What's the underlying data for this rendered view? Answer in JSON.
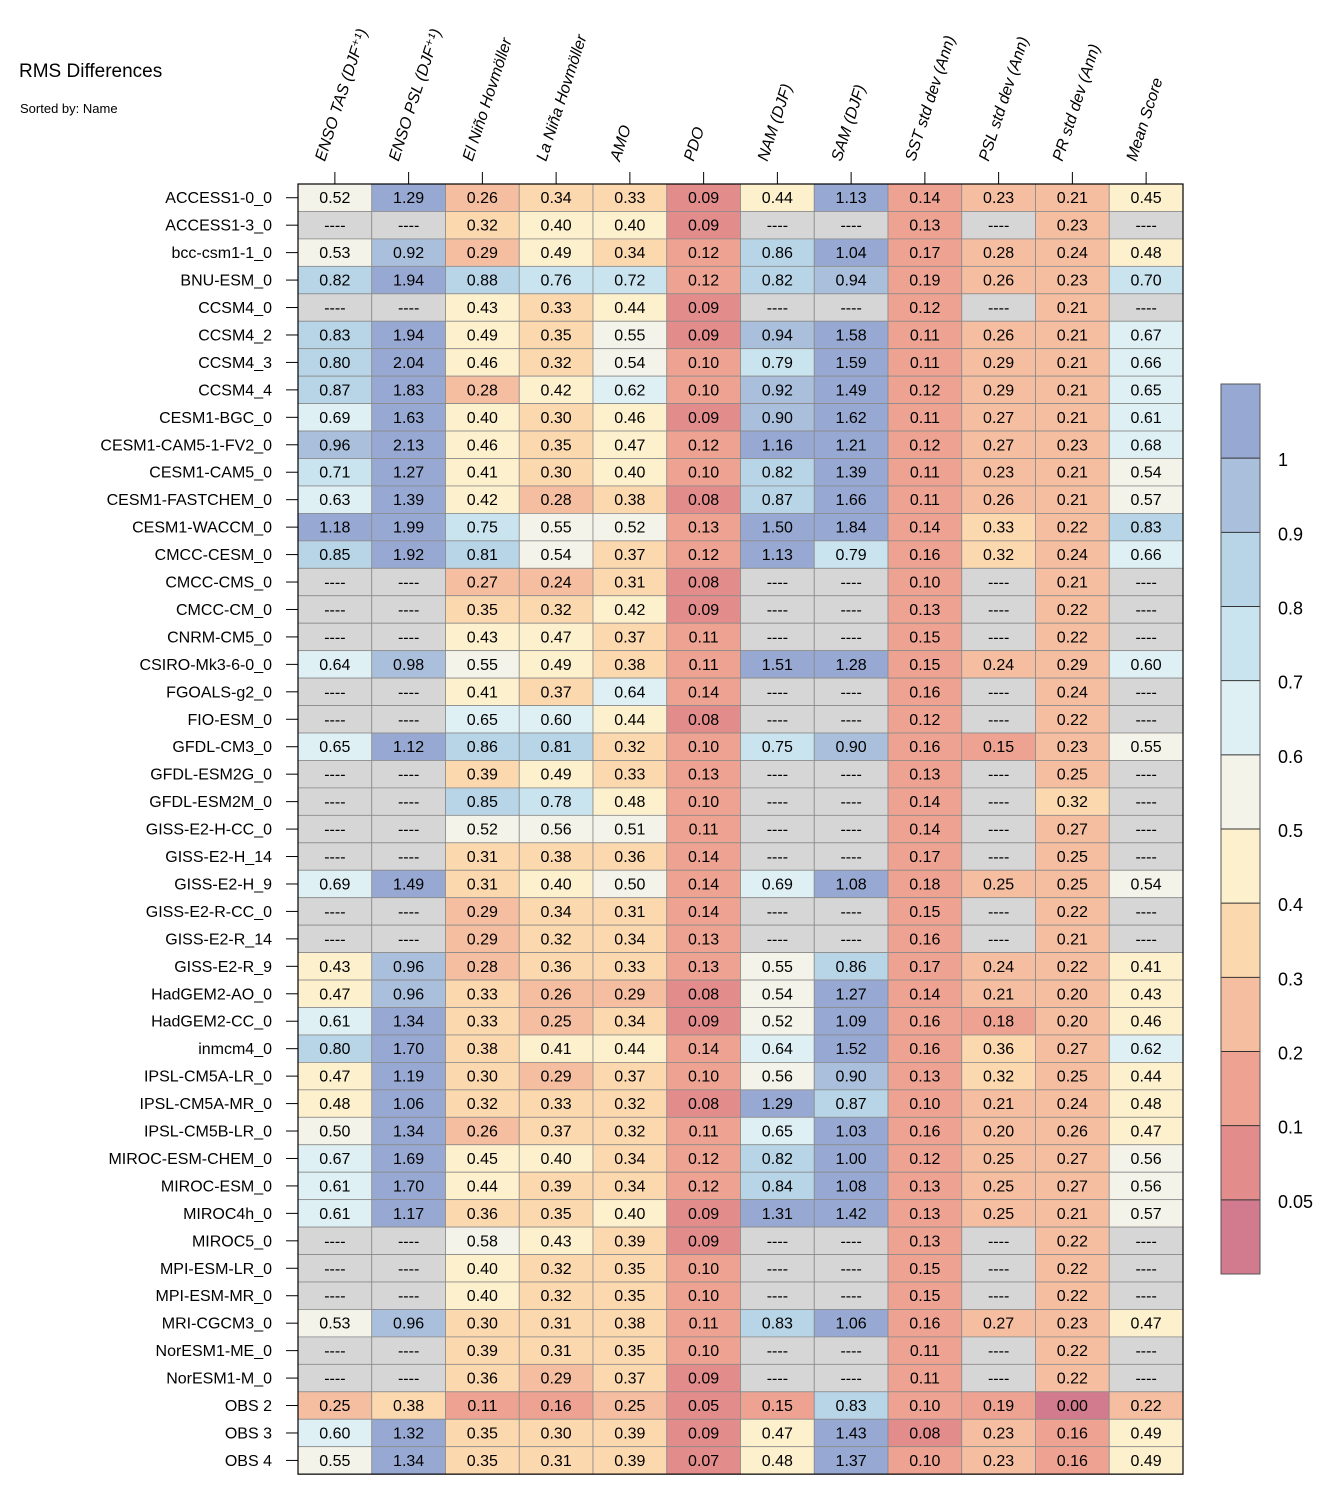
{
  "chart_data": {
    "type": "heatmap",
    "title": "RMS Differences",
    "subtitle": "Sorted by: Name",
    "missing_text": "----",
    "columns": [
      "ENSO TAS (DJF⁺¹)",
      "ENSO PSL (DJF⁺¹)",
      "El Niño Hovmöller",
      "La Niña Hovmöller",
      "AMO",
      "PDO",
      "NAM (DJF)",
      "SAM (DJF)",
      "SST std dev (Ann)",
      "PSL std dev (Ann)",
      "PR std dev (Ann)",
      "Mean Score"
    ],
    "rows": [
      "ACCESS1-0_0",
      "ACCESS1-3_0",
      "bcc-csm1-1_0",
      "BNU-ESM_0",
      "CCSM4_0",
      "CCSM4_2",
      "CCSM4_3",
      "CCSM4_4",
      "CESM1-BGC_0",
      "CESM1-CAM5-1-FV2_0",
      "CESM1-CAM5_0",
      "CESM1-FASTCHEM_0",
      "CESM1-WACCM_0",
      "CMCC-CESM_0",
      "CMCC-CMS_0",
      "CMCC-CM_0",
      "CNRM-CM5_0",
      "CSIRO-Mk3-6-0_0",
      "FGOALS-g2_0",
      "FIO-ESM_0",
      "GFDL-CM3_0",
      "GFDL-ESM2G_0",
      "GFDL-ESM2M_0",
      "GISS-E2-H-CC_0",
      "GISS-E2-H_14",
      "GISS-E2-H_9",
      "GISS-E2-R-CC_0",
      "GISS-E2-R_14",
      "GISS-E2-R_9",
      "HadGEM2-AO_0",
      "HadGEM2-CC_0",
      "inmcm4_0",
      "IPSL-CM5A-LR_0",
      "IPSL-CM5A-MR_0",
      "IPSL-CM5B-LR_0",
      "MIROC-ESM-CHEM_0",
      "MIROC-ESM_0",
      "MIROC4h_0",
      "MIROC5_0",
      "MPI-ESM-LR_0",
      "MPI-ESM-MR_0",
      "MRI-CGCM3_0",
      "NorESM1-ME_0",
      "NorESM1-M_0",
      "OBS 2",
      "OBS 3",
      "OBS 4"
    ],
    "values": [
      [
        0.52,
        1.29,
        0.26,
        0.34,
        0.33,
        0.09,
        0.44,
        1.13,
        0.14,
        0.23,
        0.21,
        0.45
      ],
      [
        null,
        null,
        0.32,
        0.4,
        0.4,
        0.09,
        null,
        null,
        0.13,
        null,
        0.23,
        null
      ],
      [
        0.53,
        0.92,
        0.29,
        0.49,
        0.34,
        0.12,
        0.86,
        1.04,
        0.17,
        0.28,
        0.24,
        0.48
      ],
      [
        0.82,
        1.94,
        0.88,
        0.76,
        0.72,
        0.12,
        0.82,
        0.94,
        0.19,
        0.26,
        0.23,
        0.7
      ],
      [
        null,
        null,
        0.43,
        0.33,
        0.44,
        0.09,
        null,
        null,
        0.12,
        null,
        0.21,
        null
      ],
      [
        0.83,
        1.94,
        0.49,
        0.35,
        0.55,
        0.09,
        0.94,
        1.58,
        0.11,
        0.26,
        0.21,
        0.67
      ],
      [
        0.8,
        2.04,
        0.46,
        0.32,
        0.54,
        0.1,
        0.79,
        1.59,
        0.11,
        0.29,
        0.21,
        0.66
      ],
      [
        0.87,
        1.83,
        0.28,
        0.42,
        0.62,
        0.1,
        0.92,
        1.49,
        0.12,
        0.29,
        0.21,
        0.65
      ],
      [
        0.69,
        1.63,
        0.4,
        0.3,
        0.46,
        0.09,
        0.9,
        1.62,
        0.11,
        0.27,
        0.21,
        0.61
      ],
      [
        0.96,
        2.13,
        0.46,
        0.35,
        0.47,
        0.12,
        1.16,
        1.21,
        0.12,
        0.27,
        0.23,
        0.68
      ],
      [
        0.71,
        1.27,
        0.41,
        0.3,
        0.4,
        0.1,
        0.82,
        1.39,
        0.11,
        0.23,
        0.21,
        0.54
      ],
      [
        0.63,
        1.39,
        0.42,
        0.28,
        0.38,
        0.08,
        0.87,
        1.66,
        0.11,
        0.26,
        0.21,
        0.57
      ],
      [
        1.18,
        1.99,
        0.75,
        0.55,
        0.52,
        0.13,
        1.5,
        1.84,
        0.14,
        0.33,
        0.22,
        0.83
      ],
      [
        0.85,
        1.92,
        0.81,
        0.54,
        0.37,
        0.12,
        1.13,
        0.79,
        0.16,
        0.32,
        0.24,
        0.66
      ],
      [
        null,
        null,
        0.27,
        0.24,
        0.31,
        0.08,
        null,
        null,
        0.1,
        null,
        0.21,
        null
      ],
      [
        null,
        null,
        0.35,
        0.32,
        0.42,
        0.09,
        null,
        null,
        0.13,
        null,
        0.22,
        null
      ],
      [
        null,
        null,
        0.43,
        0.47,
        0.37,
        0.11,
        null,
        null,
        0.15,
        null,
        0.22,
        null
      ],
      [
        0.64,
        0.98,
        0.55,
        0.49,
        0.38,
        0.11,
        1.51,
        1.28,
        0.15,
        0.24,
        0.29,
        0.6
      ],
      [
        null,
        null,
        0.41,
        0.37,
        0.64,
        0.14,
        null,
        null,
        0.16,
        null,
        0.24,
        null
      ],
      [
        null,
        null,
        0.65,
        0.6,
        0.44,
        0.08,
        null,
        null,
        0.12,
        null,
        0.22,
        null
      ],
      [
        0.65,
        1.12,
        0.86,
        0.81,
        0.32,
        0.1,
        0.75,
        0.9,
        0.16,
        0.15,
        0.23,
        0.55
      ],
      [
        null,
        null,
        0.39,
        0.49,
        0.33,
        0.13,
        null,
        null,
        0.13,
        null,
        0.25,
        null
      ],
      [
        null,
        null,
        0.85,
        0.78,
        0.48,
        0.1,
        null,
        null,
        0.14,
        null,
        0.32,
        null
      ],
      [
        null,
        null,
        0.52,
        0.56,
        0.51,
        0.11,
        null,
        null,
        0.14,
        null,
        0.27,
        null
      ],
      [
        null,
        null,
        0.31,
        0.38,
        0.36,
        0.14,
        null,
        null,
        0.17,
        null,
        0.25,
        null
      ],
      [
        0.69,
        1.49,
        0.31,
        0.4,
        0.5,
        0.14,
        0.69,
        1.08,
        0.18,
        0.25,
        0.25,
        0.54
      ],
      [
        null,
        null,
        0.29,
        0.34,
        0.31,
        0.14,
        null,
        null,
        0.15,
        null,
        0.22,
        null
      ],
      [
        null,
        null,
        0.29,
        0.32,
        0.34,
        0.13,
        null,
        null,
        0.16,
        null,
        0.21,
        null
      ],
      [
        0.43,
        0.96,
        0.28,
        0.36,
        0.33,
        0.13,
        0.55,
        0.86,
        0.17,
        0.24,
        0.22,
        0.41
      ],
      [
        0.47,
        0.96,
        0.33,
        0.26,
        0.29,
        0.08,
        0.54,
        1.27,
        0.14,
        0.21,
        0.2,
        0.43
      ],
      [
        0.61,
        1.34,
        0.33,
        0.25,
        0.34,
        0.09,
        0.52,
        1.09,
        0.16,
        0.18,
        0.2,
        0.46
      ],
      [
        0.8,
        1.7,
        0.38,
        0.41,
        0.44,
        0.14,
        0.64,
        1.52,
        0.16,
        0.36,
        0.27,
        0.62
      ],
      [
        0.47,
        1.19,
        0.3,
        0.29,
        0.37,
        0.1,
        0.56,
        0.9,
        0.13,
        0.32,
        0.25,
        0.44
      ],
      [
        0.48,
        1.06,
        0.32,
        0.33,
        0.32,
        0.08,
        1.29,
        0.87,
        0.1,
        0.21,
        0.24,
        0.48
      ],
      [
        0.5,
        1.34,
        0.26,
        0.37,
        0.32,
        0.11,
        0.65,
        1.03,
        0.16,
        0.2,
        0.26,
        0.47
      ],
      [
        0.67,
        1.69,
        0.45,
        0.4,
        0.34,
        0.12,
        0.82,
        1.0,
        0.12,
        0.25,
        0.27,
        0.56
      ],
      [
        0.61,
        1.7,
        0.44,
        0.39,
        0.34,
        0.12,
        0.84,
        1.08,
        0.13,
        0.25,
        0.27,
        0.56
      ],
      [
        0.61,
        1.17,
        0.36,
        0.35,
        0.4,
        0.09,
        1.31,
        1.42,
        0.13,
        0.25,
        0.21,
        0.57
      ],
      [
        null,
        null,
        0.58,
        0.43,
        0.39,
        0.09,
        null,
        null,
        0.13,
        null,
        0.22,
        null
      ],
      [
        null,
        null,
        0.4,
        0.32,
        0.35,
        0.1,
        null,
        null,
        0.15,
        null,
        0.22,
        null
      ],
      [
        null,
        null,
        0.4,
        0.32,
        0.35,
        0.1,
        null,
        null,
        0.15,
        null,
        0.22,
        null
      ],
      [
        0.53,
        0.96,
        0.3,
        0.31,
        0.38,
        0.11,
        0.83,
        1.06,
        0.16,
        0.27,
        0.23,
        0.47
      ],
      [
        null,
        null,
        0.39,
        0.31,
        0.35,
        0.1,
        null,
        null,
        0.11,
        null,
        0.22,
        null
      ],
      [
        null,
        null,
        0.36,
        0.29,
        0.37,
        0.09,
        null,
        null,
        0.11,
        null,
        0.22,
        null
      ],
      [
        0.25,
        0.38,
        0.11,
        0.16,
        0.25,
        0.05,
        0.15,
        0.83,
        0.1,
        0.19,
        0.0,
        0.22
      ],
      [
        0.6,
        1.32,
        0.35,
        0.3,
        0.39,
        0.09,
        0.47,
        1.43,
        0.08,
        0.23,
        0.16,
        0.49
      ],
      [
        0.55,
        1.34,
        0.35,
        0.31,
        0.39,
        0.07,
        0.48,
        1.37,
        0.1,
        0.23,
        0.16,
        0.49
      ]
    ],
    "colorbar": {
      "levels": [
        0.05,
        0.1,
        0.2,
        0.3,
        0.4,
        0.5,
        0.6,
        0.7,
        0.8,
        0.9,
        1
      ],
      "labels": [
        "0.05",
        "0.1",
        "0.2",
        "0.3",
        "0.4",
        "0.5",
        "0.6",
        "0.7",
        "0.8",
        "0.9",
        "1"
      ],
      "colors": [
        "#d27a8e",
        "#e38c8c",
        "#eea392",
        "#f5bea0",
        "#fcd8ae",
        "#fdf0cc",
        "#f4f3e9",
        "#dff0f4",
        "#c9e4ee",
        "#b8d5e8",
        "#a9bfdc",
        "#97a9d2"
      ],
      "missing_color": "#d6d6d6"
    }
  }
}
